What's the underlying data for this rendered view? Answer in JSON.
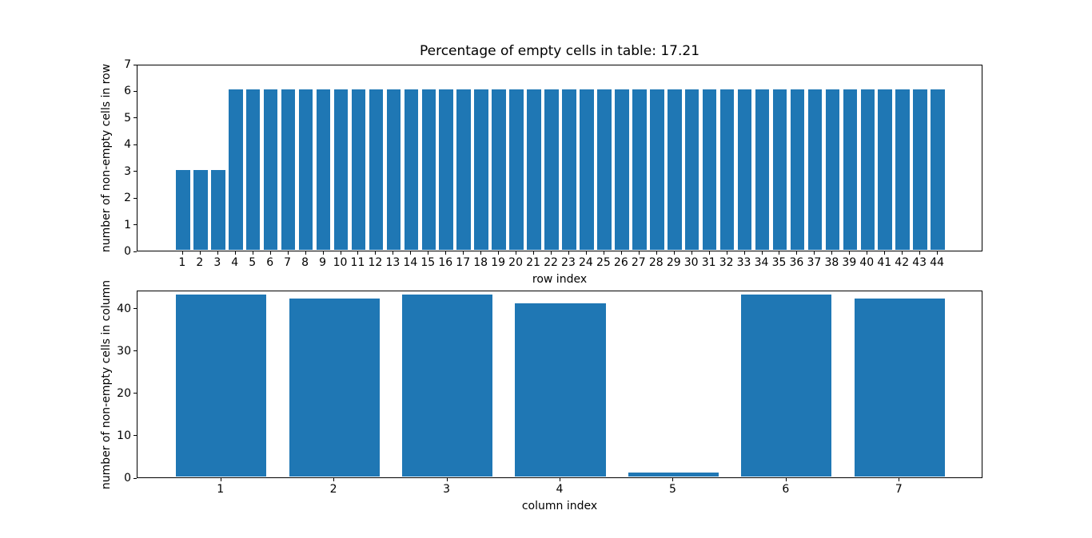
{
  "figure": {
    "background_color": "#ffffff",
    "text_color": "#000000"
  },
  "chart_data": [
    {
      "type": "bar",
      "title": "Percentage of empty cells in table: 17.21",
      "xlabel": "row index",
      "ylabel": "number of non-empty cells in row",
      "categories": [
        1,
        2,
        3,
        4,
        5,
        6,
        7,
        8,
        9,
        10,
        11,
        12,
        13,
        14,
        15,
        16,
        17,
        18,
        19,
        20,
        21,
        22,
        23,
        24,
        25,
        26,
        27,
        28,
        29,
        30,
        31,
        32,
        33,
        34,
        35,
        36,
        37,
        38,
        39,
        40,
        41,
        42,
        43,
        44
      ],
      "values": [
        3,
        3,
        3,
        6,
        6,
        6,
        6,
        6,
        6,
        6,
        6,
        6,
        6,
        6,
        6,
        6,
        6,
        6,
        6,
        6,
        6,
        6,
        6,
        6,
        6,
        6,
        6,
        6,
        6,
        6,
        6,
        6,
        6,
        6,
        6,
        6,
        6,
        6,
        6,
        6,
        6,
        6,
        6,
        6
      ],
      "xlim": [
        -1.59,
        46.59
      ],
      "ylim": [
        0,
        7
      ],
      "yticks": [
        0,
        1,
        2,
        3,
        4,
        5,
        6,
        7
      ],
      "bar_width": 0.8,
      "bar_color": "#1f77b4",
      "grid": false,
      "legend": null
    },
    {
      "type": "bar",
      "title": "",
      "xlabel": "column index",
      "ylabel": "number of non-empty cells in column",
      "categories": [
        1,
        2,
        3,
        4,
        5,
        6,
        7
      ],
      "values": [
        43,
        42,
        43,
        41,
        1,
        43,
        42
      ],
      "xlim": [
        0.26,
        7.74
      ],
      "ylim": [
        0,
        44.3
      ],
      "yticks": [
        0,
        10,
        20,
        30,
        40
      ],
      "bar_width": 0.8,
      "bar_color": "#1f77b4",
      "grid": false,
      "legend": null
    }
  ]
}
